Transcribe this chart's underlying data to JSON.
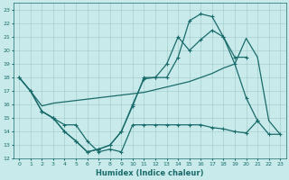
{
  "xlabel": "Humidex (Indice chaleur)",
  "bg_color": "#c8eaea",
  "grid_color": "#a0c8c8",
  "line_color": "#1a6b6b",
  "xlim": [
    -0.5,
    23.5
  ],
  "ylim": [
    12,
    23.5
  ],
  "yticks": [
    12,
    13,
    14,
    15,
    16,
    17,
    18,
    19,
    20,
    21,
    22,
    23
  ],
  "xticks": [
    0,
    1,
    2,
    3,
    4,
    5,
    6,
    7,
    8,
    9,
    10,
    11,
    12,
    13,
    14,
    15,
    16,
    17,
    18,
    19,
    20,
    21,
    22,
    23
  ],
  "line1_x": [
    0,
    1,
    2,
    3,
    4,
    5,
    6,
    7,
    8,
    9,
    10,
    11,
    12,
    13,
    14,
    15,
    16,
    17,
    18,
    19,
    20,
    21
  ],
  "line1_y": [
    18,
    17,
    15.5,
    15,
    14,
    13.3,
    12.5,
    12.7,
    13,
    14,
    15.9,
    18,
    18,
    18,
    19.5,
    22.2,
    22.7,
    22.5,
    21.0,
    19.0,
    16.5,
    14.8
  ],
  "line2_x": [
    0,
    1,
    2,
    3,
    4,
    5,
    6,
    7,
    8,
    9,
    10,
    11,
    12,
    13,
    14,
    15,
    16,
    17,
    18,
    19,
    20
  ],
  "line2_y": [
    18,
    17,
    15.5,
    15,
    14,
    13.3,
    12.5,
    12.7,
    13,
    14.0,
    16.0,
    17.9,
    18.0,
    19.0,
    21.0,
    20.0,
    20.8,
    21.5,
    21.0,
    19.5,
    19.5
  ],
  "line3_x": [
    2,
    3,
    4,
    5,
    6,
    7,
    8,
    9,
    10,
    11,
    12,
    13,
    14,
    15,
    16,
    17,
    18,
    19,
    20,
    21,
    22,
    23
  ],
  "line3_y": [
    15.5,
    15,
    14.5,
    14.5,
    13.3,
    12.5,
    12.7,
    12.5,
    14.5,
    14.5,
    14.5,
    14.5,
    14.5,
    14.5,
    14.5,
    14.3,
    14.2,
    14.0,
    13.9,
    14.8,
    13.8,
    13.8
  ],
  "line4_x": [
    0,
    1,
    2,
    3,
    4,
    5,
    6,
    7,
    8,
    9,
    10,
    11,
    12,
    13,
    14,
    15,
    16,
    17,
    18,
    19,
    20,
    21,
    22,
    23
  ],
  "line4_y": [
    18,
    17,
    15.9,
    16.1,
    16.2,
    16.3,
    16.4,
    16.5,
    16.6,
    16.7,
    16.8,
    16.9,
    17.1,
    17.3,
    17.5,
    17.7,
    18.0,
    18.3,
    18.7,
    19.0,
    20.9,
    19.5,
    14.8,
    13.8
  ]
}
